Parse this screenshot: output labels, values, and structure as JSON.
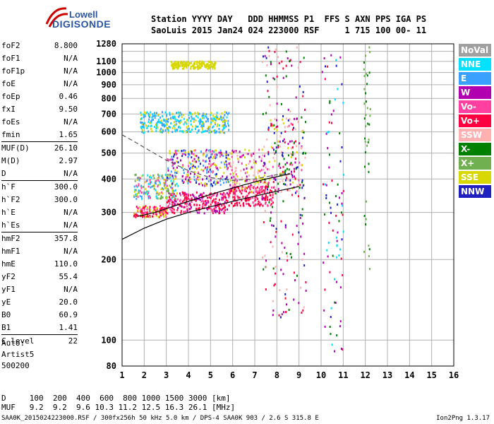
{
  "logo": {
    "line1": "Lowell",
    "line2": "DIGISONDE"
  },
  "header": {
    "labels": "Station YYYY DAY   DDD HHMMSS P1  FFS S AXN PPS IGA PS",
    "values": "SaoLuis 2015 Jan24 024 223000 RSF     1 715 100 00- 11"
  },
  "params": [
    {
      "label": "foF2",
      "value": "8.800"
    },
    {
      "label": "foF1",
      "value": "N/A"
    },
    {
      "label": "foF1p",
      "value": "N/A"
    },
    {
      "label": "foE",
      "value": "N/A"
    },
    {
      "label": "foEp",
      "value": "0.46"
    },
    {
      "label": "fxI",
      "value": "9.50"
    },
    {
      "label": "foEs",
      "value": "N/A"
    },
    {
      "label": "fmin",
      "value": "1.65"
    },
    {
      "label": "MUF(D)",
      "value": "26.10",
      "sep": true
    },
    {
      "label": "M(D)",
      "value": "2.97"
    },
    {
      "label": "D",
      "value": "N/A"
    },
    {
      "label": "h`F",
      "value": "300.0",
      "sep": true
    },
    {
      "label": "h`F2",
      "value": "300.0"
    },
    {
      "label": "h`E",
      "value": "N/A"
    },
    {
      "label": "h`Es",
      "value": "N/A"
    },
    {
      "label": "hmF2",
      "value": "357.8",
      "sep": true
    },
    {
      "label": "hmF1",
      "value": "N/A"
    },
    {
      "label": "hmE",
      "value": "110.0"
    },
    {
      "label": "yF2",
      "value": "55.4"
    },
    {
      "label": "yF1",
      "value": "N/A"
    },
    {
      "label": "yE",
      "value": "20.0"
    },
    {
      "label": "B0",
      "value": "60.9"
    },
    {
      "label": "B1",
      "value": "1.41"
    },
    {
      "label": "C-level",
      "value": "22",
      "sep": true
    }
  ],
  "auto": {
    "line1": "Auto:",
    "line2": "Artist5",
    "line3": "500200"
  },
  "muf_table": {
    "d_row": "D     100  200  400  600  800 1000 1500 3000 [km]",
    "muf_row": "MUF   9.2  9.2  9.6 10.3 11.2 12.5 16.3 26.1 [MHz]"
  },
  "footer": "SAA0K_2015024223000.RSF / 300fx256h 50 kHz 5.0 km / DPS-4 SAA0K 903 / 2.6 S 315.8 E",
  "version": "Ion2Png 1.3.17",
  "legend": [
    {
      "label": "NoVal",
      "color": "#a0a0a0"
    },
    {
      "label": "NNE",
      "color": "#00e0ff"
    },
    {
      "label": "E",
      "color": "#3aa0ff"
    },
    {
      "label": "W",
      "color": "#b000b0"
    },
    {
      "label": "Vo-",
      "color": "#ff40a0"
    },
    {
      "label": "Vo+",
      "color": "#ff0040"
    },
    {
      "label": "SSW",
      "color": "#ffb0b0"
    },
    {
      "label": "X-",
      "color": "#008000"
    },
    {
      "label": "X+",
      "color": "#70b050"
    },
    {
      "label": "SSE",
      "color": "#d8d800"
    },
    {
      "label": "NNW",
      "color": "#2020c0"
    }
  ],
  "chart_data": {
    "type": "scatter",
    "xlim": [
      1,
      16
    ],
    "ylim": [
      80,
      1280
    ],
    "y_scale": "log",
    "x_ticks": [
      1,
      2,
      3,
      4,
      5,
      6,
      7,
      8,
      9,
      10,
      11,
      12,
      13,
      14,
      15,
      16
    ],
    "y_ticks": [
      80,
      100,
      200,
      300,
      400,
      500,
      600,
      700,
      800,
      900,
      1000,
      1100,
      1280
    ],
    "y_grid": [
      80,
      100,
      200,
      300,
      400,
      500,
      600,
      700,
      800,
      900,
      1000,
      1100,
      1200,
      1280
    ],
    "grid": true,
    "series": [
      {
        "kind": "scatter",
        "color_key": "dominant",
        "clusters": [
          {
            "x": [
              1.5,
              3.0
            ],
            "y": [
              290,
              320
            ],
            "colors": [
              "#ff0040",
              "#ff40a0",
              "#d8d800",
              "#ff0040"
            ]
          },
          {
            "x": [
              3.0,
              5.8
            ],
            "y": [
              300,
              360
            ],
            "colors": [
              "#ff0040",
              "#ff40a0",
              "#b000b0",
              "#ff0040"
            ]
          },
          {
            "x": [
              5.8,
              7.8
            ],
            "y": [
              320,
              380
            ],
            "colors": [
              "#ff0040",
              "#ff40a0",
              "#ff0040"
            ]
          },
          {
            "x": [
              1.5,
              3.5
            ],
            "y": [
              340,
              420
            ],
            "colors": [
              "#00e0ff",
              "#3aa0ff",
              "#d8d800",
              "#70b050",
              "#ff40a0"
            ]
          },
          {
            "x": [
              3.0,
              5.8
            ],
            "y": [
              380,
              520
            ],
            "colors": [
              "#d8d800",
              "#b000b0",
              "#3aa0ff",
              "#2020c0",
              "#ff40a0"
            ]
          },
          {
            "x": [
              5.8,
              7.5
            ],
            "y": [
              360,
              520
            ],
            "colors": [
              "#d8d800",
              "#ff40a0",
              "#b000b0",
              "#ffb0b0"
            ]
          },
          {
            "x": [
              7.5,
              9.2
            ],
            "y": [
              360,
              680
            ],
            "colors": [
              "#d8d800",
              "#b000b0",
              "#ff0040",
              "#2020c0",
              "#ff40a0",
              "#008000",
              "#ffb0b0"
            ]
          },
          {
            "x": [
              1.8,
              5.8
            ],
            "y": [
              600,
              720
            ],
            "colors": [
              "#d8d800",
              "#00e0ff",
              "#3aa0ff"
            ]
          },
          {
            "x": [
              3.2,
              5.2
            ],
            "y": [
              1040,
              1110
            ],
            "colors": [
              "#d8d800"
            ]
          },
          {
            "x": [
              7.3,
              9.3
            ],
            "y": [
              120,
              1280
            ],
            "colors": [
              "#ffb0b0",
              "#b000b0",
              "#2020c0",
              "#008000",
              "#ff0040"
            ]
          },
          {
            "x": [
              10.0,
              11.0
            ],
            "y": [
              90,
              1280
            ],
            "colors": [
              "#b000b0",
              "#ff0040",
              "#008000",
              "#2020c0",
              "#00e0ff"
            ]
          },
          {
            "x": [
              11.9,
              12.2
            ],
            "y": [
              180,
              1280
            ],
            "colors": [
              "#008000",
              "#70b050"
            ]
          }
        ]
      },
      {
        "kind": "line",
        "style": "solid",
        "points": [
          [
            1,
            238
          ],
          [
            2,
            262
          ],
          [
            3,
            283
          ],
          [
            4,
            300
          ],
          [
            5,
            315
          ],
          [
            6,
            330
          ],
          [
            7,
            345
          ],
          [
            8,
            360
          ],
          [
            9,
            375
          ]
        ]
      },
      {
        "kind": "line",
        "style": "solid",
        "points": [
          [
            1.7,
            290
          ],
          [
            2.5,
            300
          ],
          [
            3.5,
            320
          ],
          [
            4.5,
            340
          ],
          [
            5.5,
            360
          ],
          [
            6.5,
            380
          ],
          [
            7.5,
            400
          ],
          [
            8.6,
            418
          ]
        ]
      },
      {
        "kind": "line",
        "style": "dashed",
        "points": [
          [
            1,
            585
          ],
          [
            1.5,
            555
          ],
          [
            2,
            525
          ],
          [
            3,
            470
          ],
          [
            4,
            430
          ],
          [
            5,
            405
          ],
          [
            6,
            395
          ],
          [
            7,
            400
          ],
          [
            8,
            415
          ],
          [
            8.6,
            420
          ]
        ]
      }
    ]
  }
}
